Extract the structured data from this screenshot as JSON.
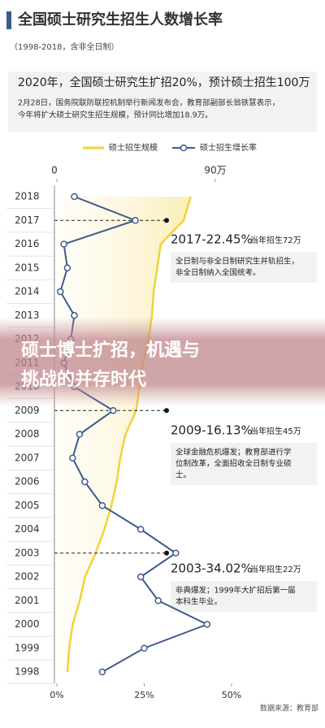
{
  "chart_data": {
    "type": "bar-line",
    "title": "全国硕士研究生招生人数增长率",
    "subtitle": "（1998-2018，含非全日制）",
    "headline": "2020年，全国硕士研究生扩招20%，预计硕士招生100万",
    "headline_text": [
      "2月28日，国务院联防联控机制举行新闻发布会，教育部副部长翁铁慧表示，",
      "今年将扩大硕士研究生招生规模，预计同比增加18.9万。"
    ],
    "categories": [
      "2018",
      "2017",
      "2016",
      "2015",
      "2014",
      "2013",
      "2012",
      "2011",
      "2010",
      "2009",
      "2008",
      "2007",
      "2006",
      "2005",
      "2004",
      "2003",
      "2002",
      "2001",
      "2000",
      "1999",
      "1998"
    ],
    "series": [
      {
        "name": "硕士招生规模",
        "color": "#f0d23c",
        "axis": "x2",
        "values": [
          76,
          72,
          59,
          57,
          55,
          54,
          52,
          49,
          47,
          45,
          39,
          36,
          34,
          31,
          27,
          22,
          16,
          13,
          9,
          7,
          6
        ]
      },
      {
        "name": "硕士招生增长率",
        "color": "#3d5a8c",
        "values": [
          5,
          22.45,
          2,
          3,
          1,
          5,
          4,
          2,
          5,
          16.13,
          6.5,
          4.5,
          8,
          13,
          24,
          34.02,
          24,
          29,
          43,
          25,
          13
        ]
      }
    ],
    "xlim": [
      0,
      55
    ],
    "xticks": [
      {
        "value": 0,
        "label": "0%"
      },
      {
        "value": 25,
        "label": "25%"
      },
      {
        "value": 50,
        "label": "50%"
      }
    ],
    "x2lim": [
      0,
      90
    ],
    "x2ticks": [
      0,
      {
        "value": 90,
        "label": "90万"
      }
    ],
    "annotations": [
      {
        "year": "2017",
        "label": "2017-22.45%",
        "extra": "当年招生72万",
        "lines": [
          "全日制与非全日制研究生并轨招生，",
          "非全日制纳入全国统考。"
        ]
      },
      {
        "year": "2009",
        "label": "2009-16.13%",
        "extra": "当年招生45万",
        "lines": [
          "全球金融危机爆发；教育部进行学",
          "位制改革，全面招收全日制专业硕",
          "士。"
        ]
      },
      {
        "year": "2003",
        "label": "2003-34.02%",
        "extra": "当年招生22万",
        "lines": [
          "非典爆发；1999年大扩招后第一届",
          "本科生毕业。"
        ]
      }
    ],
    "overlay": [
      "硕士博士扩招，机遇与",
      "挑战的并存时代"
    ],
    "source": "数据来源：教育部"
  }
}
